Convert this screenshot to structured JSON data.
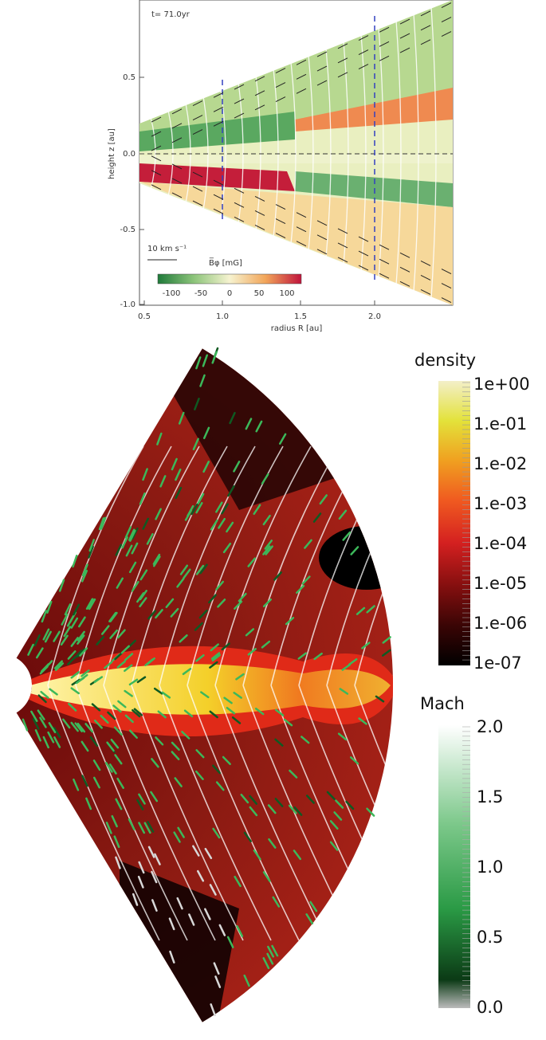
{
  "panel_top": {
    "time_label": "t= 71.0yr",
    "x_axis": {
      "label": "radius  R [au]",
      "ticks": [
        "0.5",
        "1.0",
        "1.5",
        "2.0"
      ]
    },
    "y_axis": {
      "label": "height  z [au]",
      "ticks": [
        "0.5",
        "0.0",
        "-0.5",
        "-1.0"
      ]
    },
    "velocity_scale": "10 km s⁻¹",
    "colorbar": {
      "label": "B̅φ [mG]",
      "ticks": [
        "-100",
        "-50",
        "0",
        "50",
        "100"
      ]
    }
  },
  "panel_bottom": {
    "density_colorbar": {
      "label": "density",
      "ticks": [
        "1e+00",
        "1.e-01",
        "1.e-02",
        "1.e-03",
        "1.e-04",
        "1.e-05",
        "1.e-06",
        "1e-07"
      ]
    },
    "mach_colorbar": {
      "label": "Mach",
      "ticks": [
        "2.0",
        "1.5",
        "1.0",
        "0.5",
        "0.0"
      ]
    }
  }
}
